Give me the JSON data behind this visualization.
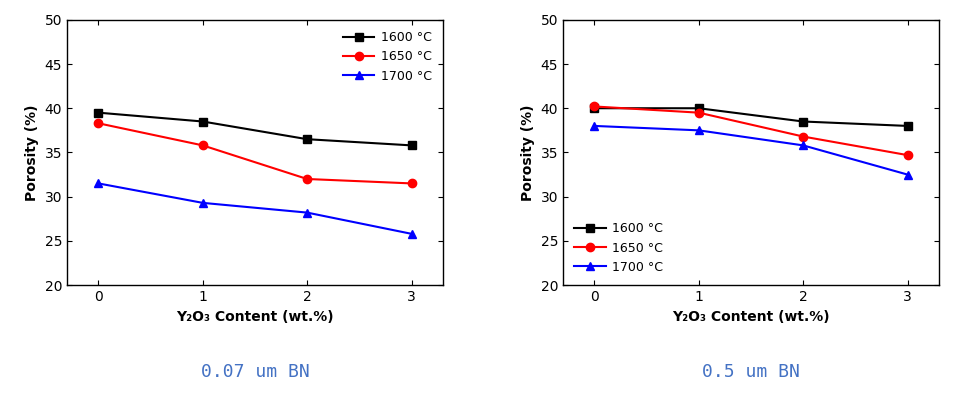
{
  "x": [
    0,
    1,
    2,
    3
  ],
  "left_plot": {
    "title": "0.07 um BN",
    "legend_loc": "upper right",
    "series": {
      "1600": {
        "color": "black",
        "marker": "s",
        "values": [
          39.5,
          38.5,
          36.5,
          35.8
        ]
      },
      "1650": {
        "color": "red",
        "marker": "o",
        "values": [
          38.3,
          35.8,
          32.0,
          31.5
        ]
      },
      "1700": {
        "color": "blue",
        "marker": "^",
        "values": [
          31.5,
          29.3,
          28.2,
          25.8
        ]
      }
    }
  },
  "right_plot": {
    "title": "0.5 um BN",
    "legend_loc": "lower left",
    "series": {
      "1600": {
        "color": "black",
        "marker": "s",
        "values": [
          40.0,
          40.0,
          38.5,
          38.0
        ]
      },
      "1650": {
        "color": "red",
        "marker": "o",
        "values": [
          40.2,
          39.5,
          36.8,
          34.7
        ]
      },
      "1700": {
        "color": "blue",
        "marker": "^",
        "values": [
          38.0,
          37.5,
          35.8,
          32.5
        ]
      }
    }
  },
  "ylabel": "Porosity (%)",
  "xlabel": "Y₂O₃ Content (wt.%)",
  "ylim": [
    20,
    50
  ],
  "yticks": [
    20,
    25,
    30,
    35,
    40,
    45,
    50
  ],
  "xticks": [
    0,
    1,
    2,
    3
  ],
  "title_color": "#4472C4",
  "title_fontsize": 13,
  "axis_fontsize": 10,
  "legend_fontsize": 9,
  "marker_size": 6,
  "linewidth": 1.5
}
